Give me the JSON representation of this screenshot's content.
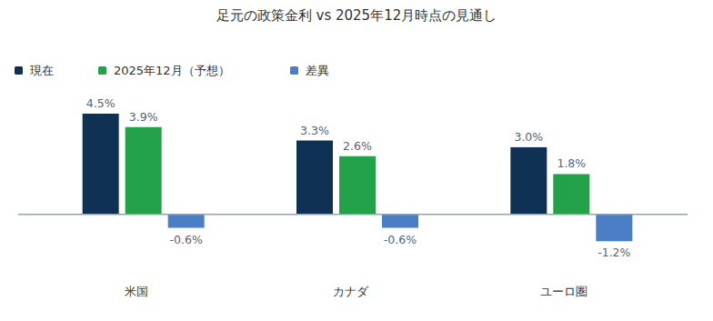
{
  "chart_data": {
    "type": "bar",
    "title": "足元の政策金利 vs 2025年12月時点の見通し",
    "categories": [
      "米国",
      "カナダ",
      "ユーロ圏"
    ],
    "series": [
      {
        "name": "現在",
        "color": "#0e3154",
        "values": [
          4.5,
          3.3,
          3.0
        ],
        "value_labels": [
          "4.5%",
          "3.3%",
          "3.0%"
        ]
      },
      {
        "name": "2025年12月（予想）",
        "color": "#24a24a",
        "values": [
          3.9,
          2.6,
          1.8
        ],
        "value_labels": [
          "3.9%",
          "2.6%",
          "1.8%"
        ]
      },
      {
        "name": "差異",
        "color": "#4a7fc6",
        "values": [
          -0.6,
          -0.6,
          -1.2
        ],
        "value_labels": [
          "-0.6%",
          "-0.6%",
          "-1.2%"
        ]
      }
    ],
    "ylim": [
      -1.5,
      5
    ],
    "grid": false,
    "legend": "top-left",
    "data_labels": true,
    "tick_labels": "x"
  }
}
